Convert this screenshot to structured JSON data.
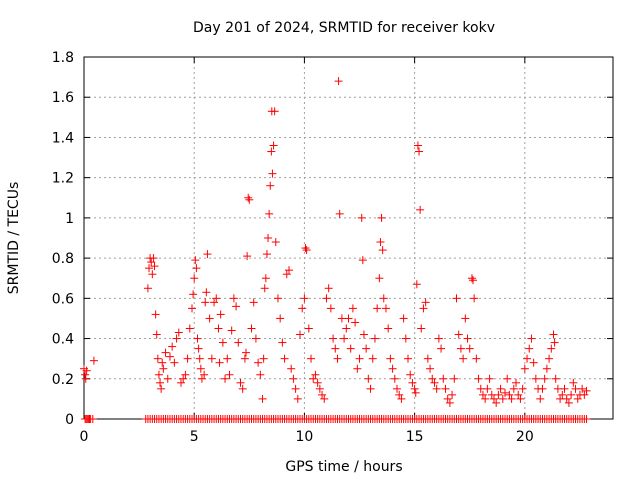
{
  "chart_data": {
    "type": "scatter",
    "title": "Day 201 of 2024, SRMTID for receiver kokv",
    "xlabel": "GPS time / hours",
    "ylabel": "SRMTID / TECUs",
    "xlim": [
      0,
      24
    ],
    "ylim": [
      0,
      1.8
    ],
    "xticks": [
      0,
      5,
      10,
      15,
      20
    ],
    "xtick_labels": [
      "0",
      "5",
      "10",
      "15",
      "20"
    ],
    "yticks": [
      0,
      0.2,
      0.4,
      0.6,
      0.8,
      1.0,
      1.2,
      1.4,
      1.6,
      1.8
    ],
    "ytick_labels": [
      "0",
      "0.2",
      "0.4",
      "0.6",
      "0.8",
      "1",
      "1.2",
      "1.4",
      "1.6",
      "1.8"
    ],
    "grid": true,
    "marker": "+",
    "color": "#ff0000",
    "series": [
      {
        "name": "SRMTID",
        "points": [
          [
            0.0,
            0.25
          ],
          [
            0.05,
            0.22
          ],
          [
            0.08,
            0.2
          ],
          [
            0.12,
            0.24
          ],
          [
            0.45,
            0.29
          ],
          [
            2.9,
            0.65
          ],
          [
            2.95,
            0.75
          ],
          [
            3.0,
            0.8
          ],
          [
            3.05,
            0.78
          ],
          [
            3.1,
            0.72
          ],
          [
            3.15,
            0.8
          ],
          [
            3.2,
            0.76
          ],
          [
            3.25,
            0.52
          ],
          [
            3.3,
            0.42
          ],
          [
            3.35,
            0.3
          ],
          [
            3.4,
            0.22
          ],
          [
            3.45,
            0.18
          ],
          [
            3.5,
            0.15
          ],
          [
            3.55,
            0.28
          ],
          [
            3.6,
            0.25
          ],
          [
            3.7,
            0.33
          ],
          [
            3.8,
            0.2
          ],
          [
            3.9,
            0.31
          ],
          [
            4.0,
            0.36
          ],
          [
            4.1,
            0.28
          ],
          [
            4.2,
            0.4
          ],
          [
            4.3,
            0.43
          ],
          [
            4.4,
            0.18
          ],
          [
            4.5,
            0.2
          ],
          [
            4.6,
            0.22
          ],
          [
            4.7,
            0.3
          ],
          [
            4.8,
            0.45
          ],
          [
            4.9,
            0.55
          ],
          [
            4.95,
            0.62
          ],
          [
            5.0,
            0.7
          ],
          [
            5.05,
            0.79
          ],
          [
            5.1,
            0.75
          ],
          [
            5.15,
            0.4
          ],
          [
            5.2,
            0.35
          ],
          [
            5.25,
            0.3
          ],
          [
            5.3,
            0.25
          ],
          [
            5.35,
            0.2
          ],
          [
            5.45,
            0.22
          ],
          [
            5.5,
            0.58
          ],
          [
            5.55,
            0.63
          ],
          [
            5.6,
            0.82
          ],
          [
            5.7,
            0.5
          ],
          [
            5.8,
            0.3
          ],
          [
            5.9,
            0.58
          ],
          [
            6.0,
            0.6
          ],
          [
            6.1,
            0.45
          ],
          [
            6.15,
            0.28
          ],
          [
            6.2,
            0.52
          ],
          [
            6.3,
            0.38
          ],
          [
            6.4,
            0.2
          ],
          [
            6.5,
            0.3
          ],
          [
            6.6,
            0.22
          ],
          [
            6.7,
            0.44
          ],
          [
            6.8,
            0.6
          ],
          [
            6.9,
            0.56
          ],
          [
            7.0,
            0.38
          ],
          [
            7.1,
            0.18
          ],
          [
            7.2,
            0.15
          ],
          [
            7.3,
            0.3
          ],
          [
            7.35,
            0.33
          ],
          [
            7.4,
            0.81
          ],
          [
            7.45,
            1.1
          ],
          [
            7.5,
            1.09
          ],
          [
            7.6,
            0.45
          ],
          [
            7.7,
            0.58
          ],
          [
            7.8,
            0.4
          ],
          [
            7.9,
            0.28
          ],
          [
            8.0,
            0.22
          ],
          [
            8.1,
            0.1
          ],
          [
            8.15,
            0.3
          ],
          [
            8.2,
            0.65
          ],
          [
            8.25,
            0.7
          ],
          [
            8.3,
            0.82
          ],
          [
            8.35,
            0.9
          ],
          [
            8.4,
            1.02
          ],
          [
            8.45,
            1.16
          ],
          [
            8.5,
            1.33
          ],
          [
            8.52,
            1.53
          ],
          [
            8.55,
            1.22
          ],
          [
            8.6,
            1.36
          ],
          [
            8.65,
            1.53
          ],
          [
            8.7,
            0.88
          ],
          [
            8.8,
            0.6
          ],
          [
            8.9,
            0.5
          ],
          [
            9.0,
            0.38
          ],
          [
            9.1,
            0.3
          ],
          [
            9.2,
            0.72
          ],
          [
            9.3,
            0.74
          ],
          [
            9.4,
            0.25
          ],
          [
            9.5,
            0.2
          ],
          [
            9.6,
            0.15
          ],
          [
            9.7,
            0.1
          ],
          [
            9.8,
            0.42
          ],
          [
            9.9,
            0.55
          ],
          [
            10.0,
            0.6
          ],
          [
            10.05,
            0.85
          ],
          [
            10.1,
            0.84
          ],
          [
            10.2,
            0.45
          ],
          [
            10.3,
            0.3
          ],
          [
            10.4,
            0.2
          ],
          [
            10.5,
            0.22
          ],
          [
            10.6,
            0.18
          ],
          [
            10.7,
            0.15
          ],
          [
            10.8,
            0.12
          ],
          [
            10.9,
            0.1
          ],
          [
            11.0,
            0.6
          ],
          [
            11.1,
            0.65
          ],
          [
            11.2,
            0.55
          ],
          [
            11.3,
            0.4
          ],
          [
            11.4,
            0.35
          ],
          [
            11.5,
            0.3
          ],
          [
            11.55,
            1.68
          ],
          [
            11.6,
            1.02
          ],
          [
            11.7,
            0.5
          ],
          [
            11.8,
            0.4
          ],
          [
            11.9,
            0.45
          ],
          [
            12.0,
            0.5
          ],
          [
            12.1,
            0.35
          ],
          [
            12.2,
            0.55
          ],
          [
            12.3,
            0.48
          ],
          [
            12.4,
            0.25
          ],
          [
            12.5,
            0.3
          ],
          [
            12.6,
            1.0
          ],
          [
            12.65,
            0.79
          ],
          [
            12.7,
            0.42
          ],
          [
            12.8,
            0.35
          ],
          [
            12.9,
            0.2
          ],
          [
            13.0,
            0.15
          ],
          [
            13.1,
            0.3
          ],
          [
            13.2,
            0.4
          ],
          [
            13.3,
            0.55
          ],
          [
            13.4,
            0.7
          ],
          [
            13.45,
            0.88
          ],
          [
            13.5,
            1.0
          ],
          [
            13.55,
            0.84
          ],
          [
            13.6,
            0.6
          ],
          [
            13.7,
            0.55
          ],
          [
            13.8,
            0.45
          ],
          [
            13.9,
            0.3
          ],
          [
            14.0,
            0.25
          ],
          [
            14.1,
            0.2
          ],
          [
            14.2,
            0.15
          ],
          [
            14.3,
            0.12
          ],
          [
            14.4,
            0.1
          ],
          [
            14.5,
            0.5
          ],
          [
            14.6,
            0.4
          ],
          [
            14.7,
            0.3
          ],
          [
            14.8,
            0.22
          ],
          [
            14.9,
            0.18
          ],
          [
            15.0,
            0.15
          ],
          [
            15.05,
            0.13
          ],
          [
            15.1,
            0.67
          ],
          [
            15.15,
            1.36
          ],
          [
            15.2,
            1.33
          ],
          [
            15.25,
            1.04
          ],
          [
            15.3,
            0.45
          ],
          [
            15.4,
            0.55
          ],
          [
            15.5,
            0.58
          ],
          [
            15.6,
            0.3
          ],
          [
            15.7,
            0.25
          ],
          [
            15.8,
            0.2
          ],
          [
            15.9,
            0.18
          ],
          [
            16.0,
            0.15
          ],
          [
            16.1,
            0.4
          ],
          [
            16.2,
            0.35
          ],
          [
            16.3,
            0.2
          ],
          [
            16.4,
            0.15
          ],
          [
            16.5,
            0.1
          ],
          [
            16.6,
            0.08
          ],
          [
            16.7,
            0.12
          ],
          [
            16.8,
            0.2
          ],
          [
            16.9,
            0.6
          ],
          [
            17.0,
            0.42
          ],
          [
            17.1,
            0.35
          ],
          [
            17.2,
            0.3
          ],
          [
            17.3,
            0.5
          ],
          [
            17.4,
            0.4
          ],
          [
            17.5,
            0.35
          ],
          [
            17.6,
            0.7
          ],
          [
            17.65,
            0.69
          ],
          [
            17.7,
            0.6
          ],
          [
            17.8,
            0.3
          ],
          [
            17.9,
            0.2
          ],
          [
            18.0,
            0.15
          ],
          [
            18.1,
            0.12
          ],
          [
            18.2,
            0.1
          ],
          [
            18.3,
            0.15
          ],
          [
            18.4,
            0.2
          ],
          [
            18.5,
            0.12
          ],
          [
            18.6,
            0.1
          ],
          [
            18.7,
            0.08
          ],
          [
            18.8,
            0.12
          ],
          [
            18.9,
            0.15
          ],
          [
            19.0,
            0.1
          ],
          [
            19.1,
            0.13
          ],
          [
            19.2,
            0.2
          ],
          [
            19.3,
            0.12
          ],
          [
            19.4,
            0.1
          ],
          [
            19.5,
            0.15
          ],
          [
            19.6,
            0.18
          ],
          [
            19.7,
            0.12
          ],
          [
            19.8,
            0.1
          ],
          [
            19.9,
            0.15
          ],
          [
            20.0,
            0.25
          ],
          [
            20.1,
            0.3
          ],
          [
            20.2,
            0.35
          ],
          [
            20.3,
            0.4
          ],
          [
            20.4,
            0.28
          ],
          [
            20.5,
            0.2
          ],
          [
            20.6,
            0.15
          ],
          [
            20.7,
            0.1
          ],
          [
            20.8,
            0.15
          ],
          [
            20.9,
            0.2
          ],
          [
            21.0,
            0.25
          ],
          [
            21.1,
            0.3
          ],
          [
            21.2,
            0.35
          ],
          [
            21.3,
            0.42
          ],
          [
            21.35,
            0.38
          ],
          [
            21.4,
            0.2
          ],
          [
            21.5,
            0.15
          ],
          [
            21.6,
            0.1
          ],
          [
            21.7,
            0.12
          ],
          [
            21.8,
            0.15
          ],
          [
            21.9,
            0.1
          ],
          [
            22.0,
            0.08
          ],
          [
            22.1,
            0.12
          ],
          [
            22.2,
            0.18
          ],
          [
            22.3,
            0.15
          ],
          [
            22.4,
            0.1
          ],
          [
            22.5,
            0.12
          ],
          [
            22.6,
            0.15
          ],
          [
            22.7,
            0.12
          ],
          [
            22.8,
            0.14
          ]
        ],
        "zero_points": [
          0.05,
          0.1,
          0.15,
          0.2,
          0.25,
          0.3,
          0.4,
          2.8,
          2.9,
          3.0,
          3.1,
          3.2,
          3.3,
          3.4,
          3.5,
          3.6,
          3.7,
          3.8,
          3.9,
          4.0,
          4.1,
          4.2,
          4.3,
          4.4,
          4.5,
          4.6,
          4.7,
          4.8,
          4.9,
          5.0,
          5.1,
          5.2,
          5.3,
          5.4,
          5.5,
          5.6,
          5.7,
          5.8,
          5.9,
          6.0,
          6.1,
          6.2,
          6.3,
          6.4,
          6.5,
          6.6,
          6.7,
          6.8,
          6.9,
          7.0,
          7.1,
          7.2,
          7.3,
          7.4,
          7.5,
          7.6,
          7.7,
          7.8,
          7.9,
          8.0,
          8.1,
          8.2,
          8.3,
          8.4,
          8.5,
          8.6,
          8.7,
          8.8,
          8.9,
          9.0,
          9.1,
          9.2,
          9.3,
          9.4,
          9.5,
          9.6,
          9.7,
          9.8,
          9.9,
          10.0,
          10.1,
          10.2,
          10.3,
          10.4,
          10.5,
          10.6,
          10.7,
          10.8,
          10.9,
          11.0,
          11.1,
          11.2,
          11.3,
          11.4,
          11.5,
          11.6,
          11.7,
          11.8,
          11.9,
          12.0,
          12.1,
          12.2,
          12.3,
          12.4,
          12.5,
          12.6,
          12.7,
          12.8,
          12.9,
          13.0,
          13.1,
          13.2,
          13.3,
          13.4,
          13.5,
          13.6,
          13.7,
          13.8,
          13.9,
          14.0,
          14.1,
          14.2,
          14.3,
          14.4,
          14.5,
          14.6,
          14.7,
          14.8,
          14.9,
          15.0,
          15.1,
          15.2,
          15.3,
          15.4,
          15.5,
          15.6,
          15.7,
          15.8,
          15.9,
          16.0,
          16.1,
          16.2,
          16.3,
          16.4,
          16.5,
          16.6,
          16.7,
          16.8,
          16.9,
          17.0,
          17.1,
          17.2,
          17.3,
          17.4,
          17.5,
          17.6,
          17.7,
          17.8,
          17.9,
          18.0,
          18.1,
          18.2,
          18.3,
          18.4,
          18.5,
          18.6,
          18.7,
          18.8,
          18.9,
          19.0,
          19.1,
          19.2,
          19.3,
          19.4,
          19.5,
          19.6,
          19.7,
          19.8,
          19.9,
          20.0,
          20.1,
          20.2,
          20.3,
          20.4,
          20.5,
          20.6,
          20.7,
          20.8,
          20.9,
          21.0,
          21.1,
          21.2,
          21.3,
          21.4,
          21.5,
          21.6,
          21.7,
          21.8,
          21.9,
          22.0,
          22.1,
          22.2,
          22.3,
          22.4,
          22.5,
          22.6,
          22.7,
          22.8
        ]
      }
    ]
  }
}
